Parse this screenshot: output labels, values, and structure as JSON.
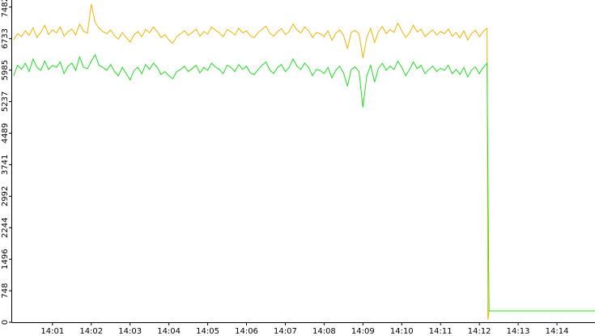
{
  "chart_data": {
    "type": "line",
    "x": [
      0.0,
      0.1,
      0.2,
      0.3,
      0.4,
      0.5,
      0.6,
      0.7,
      0.8,
      0.9,
      1.0,
      1.1,
      1.2,
      1.3,
      1.4,
      1.5,
      1.6,
      1.7,
      1.8,
      1.9,
      2.0,
      2.1,
      2.2,
      2.3,
      2.4,
      2.5,
      2.6,
      2.7,
      2.8,
      2.9,
      3.0,
      3.1,
      3.2,
      3.3,
      3.4,
      3.5,
      3.6,
      3.7,
      3.8,
      3.9,
      4.0,
      4.1,
      4.2,
      4.3,
      4.4,
      4.5,
      4.6,
      4.7,
      4.8,
      4.9,
      5.0,
      5.1,
      5.2,
      5.3,
      5.4,
      5.5,
      5.6,
      5.7,
      5.8,
      5.9,
      6.0,
      6.1,
      6.2,
      6.3,
      6.4,
      6.5,
      6.6,
      6.7,
      6.8,
      6.9,
      7.0,
      7.1,
      7.2,
      7.3,
      7.4,
      7.5,
      7.6,
      7.7,
      7.8,
      7.9,
      8.0,
      8.1,
      8.2,
      8.3,
      8.4,
      8.5,
      8.6,
      8.7,
      8.8,
      8.9,
      9.0,
      9.1,
      9.2,
      9.3,
      9.4,
      9.5,
      9.6,
      9.7,
      9.8,
      9.9,
      10.0,
      10.1,
      10.2,
      10.3,
      10.4,
      10.5,
      10.6,
      10.7,
      10.8,
      10.9,
      11.0,
      11.1,
      11.2,
      11.3,
      11.4,
      11.5,
      11.6,
      11.7,
      11.8,
      11.9,
      12.0,
      12.1,
      12.2,
      12.22,
      12.25,
      12.3,
      14.98
    ],
    "series": [
      {
        "color": "#f0b400",
        "values": [
          6700,
          6850,
          6780,
          6920,
          6810,
          6990,
          6760,
          6880,
          7050,
          6830,
          6940,
          6870,
          7010,
          6790,
          6900,
          6960,
          6820,
          7080,
          6910,
          6860,
          7550,
          7120,
          6980,
          6900,
          6850,
          6940,
          6800,
          6720,
          6880,
          6760,
          6650,
          6820,
          6900,
          6780,
          6950,
          6870,
          7010,
          6900,
          6760,
          6830,
          6700,
          6620,
          6780,
          6850,
          6920,
          6810,
          6880,
          6960,
          6790,
          6900,
          6840,
          7010,
          6930,
          6870,
          6780,
          6950,
          6900,
          6820,
          6980,
          6870,
          6920,
          6800,
          6760,
          6880,
          6950,
          7030,
          6860,
          6790,
          6900,
          6970,
          6830,
          6900,
          7080,
          6940,
          6870,
          7010,
          6920,
          6760,
          6880,
          6850,
          6780,
          6920,
          6690,
          6860,
          6940,
          6810,
          6500,
          6880,
          6930,
          6850,
          6270,
          6760,
          6980,
          6640,
          6900,
          7020,
          6850,
          6950,
          6880,
          7100,
          6920,
          6760,
          6870,
          7050,
          6890,
          6960,
          6780,
          6870,
          6940,
          6820,
          6900,
          6850,
          6960,
          6790,
          6880,
          6750,
          6920,
          6700,
          6860,
          6930,
          6780,
          6900,
          6980,
          60,
          270,
          270,
          270
        ]
      },
      {
        "color": "#22dd22",
        "values": [
          5850,
          6100,
          6000,
          6150,
          5950,
          6250,
          6050,
          5980,
          6200,
          6000,
          6100,
          6050,
          6180,
          5900,
          6080,
          6150,
          5980,
          6300,
          6050,
          6020,
          6200,
          6350,
          6100,
          6050,
          5980,
          6120,
          5950,
          5850,
          6050,
          5900,
          5750,
          5980,
          6050,
          5900,
          6120,
          6000,
          6150,
          6050,
          5880,
          5950,
          5850,
          5780,
          5950,
          6000,
          6080,
          5950,
          6020,
          6100,
          5920,
          6050,
          5980,
          6150,
          6060,
          6000,
          5900,
          6100,
          6050,
          5950,
          6120,
          6000,
          6080,
          5920,
          5880,
          6000,
          6100,
          6180,
          5990,
          5900,
          6050,
          6120,
          5950,
          6050,
          6250,
          6080,
          6000,
          6150,
          6050,
          5850,
          6000,
          5980,
          5900,
          6050,
          5800,
          5980,
          6080,
          5920,
          5600,
          6000,
          6060,
          5950,
          5100,
          5850,
          6100,
          5700,
          6030,
          6150,
          5980,
          6080,
          6000,
          6200,
          6050,
          5850,
          6000,
          6180,
          6020,
          6100,
          5900,
          6000,
          6080,
          5950,
          6030,
          5980,
          6100,
          5900,
          6000,
          5880,
          6050,
          5820,
          5990,
          6060,
          5900,
          6050,
          6150,
          3500,
          270,
          270,
          270
        ]
      }
    ],
    "xlim": [
      -0.06,
      14.98
    ],
    "xticks": [
      {
        "value": 1,
        "label": "14:01"
      },
      {
        "value": 2,
        "label": "14:02"
      },
      {
        "value": 3,
        "label": "14:03"
      },
      {
        "value": 4,
        "label": "14:04"
      },
      {
        "value": 5,
        "label": "14:05"
      },
      {
        "value": 6,
        "label": "14:06"
      },
      {
        "value": 7,
        "label": "14:07"
      },
      {
        "value": 8,
        "label": "14:08"
      },
      {
        "value": 9,
        "label": "14:09"
      },
      {
        "value": 10,
        "label": "14:10"
      },
      {
        "value": 11,
        "label": "14:11"
      },
      {
        "value": 12,
        "label": "14:12"
      },
      {
        "value": 13,
        "label": "14:13"
      },
      {
        "value": 14,
        "label": "14:14"
      }
    ],
    "ylim": [
      0,
      7650
    ],
    "yticks": [
      0,
      748,
      1496,
      2244,
      2992,
      3741,
      4489,
      5237,
      5985,
      6733,
      7482
    ]
  }
}
